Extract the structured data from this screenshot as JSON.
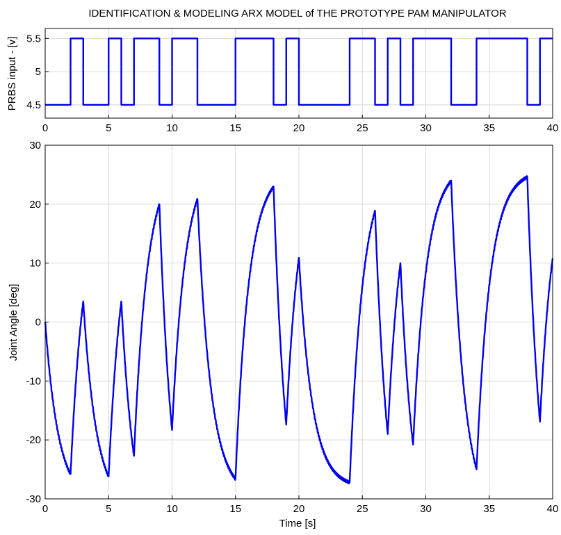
{
  "chart_data": [
    {
      "type": "line",
      "title": "IDENTIFICATION & MODELING ARX MODEL of THE PROTOTYPE PAM MANIPULATOR",
      "xlabel": "",
      "ylabel": "PRBS input - [v]",
      "xlim": [
        0,
        40
      ],
      "ylim": [
        4.3,
        5.65
      ],
      "xticks": [
        "0",
        "5",
        "10",
        "15",
        "20",
        "25",
        "30",
        "35",
        "40"
      ],
      "yticks": [
        "4.5",
        "5",
        "5.5"
      ],
      "grid": true,
      "series": [
        {
          "color": "#0000ee",
          "style": "step",
          "x": [
            0,
            2,
            2,
            3,
            3,
            5,
            5,
            6,
            6,
            7,
            7,
            9,
            9,
            10,
            10,
            12,
            12,
            15,
            15,
            18,
            18,
            19,
            19,
            20,
            20,
            24,
            24,
            26,
            26,
            27,
            27,
            28,
            28,
            29,
            29,
            32,
            32,
            34,
            34,
            38,
            38,
            39,
            39,
            40
          ],
          "y": [
            4.5,
            4.5,
            5.5,
            5.5,
            4.5,
            4.5,
            5.5,
            5.5,
            4.5,
            4.5,
            5.5,
            5.5,
            4.5,
            4.5,
            5.5,
            5.5,
            4.5,
            4.5,
            5.5,
            5.5,
            4.5,
            4.5,
            5.5,
            5.5,
            4.5,
            4.5,
            5.5,
            5.5,
            4.5,
            4.5,
            5.5,
            5.5,
            4.5,
            4.5,
            5.5,
            5.5,
            4.5,
            4.5,
            5.5,
            5.5,
            4.5,
            4.5,
            5.5,
            5.5
          ]
        }
      ]
    },
    {
      "type": "line",
      "title": "",
      "xlabel": "Time  [s]",
      "ylabel": "Joint Angle  [deg]",
      "xlim": [
        0,
        40
      ],
      "ylim": [
        -30,
        30
      ],
      "xticks": [
        "0",
        "5",
        "10",
        "15",
        "20",
        "25",
        "30",
        "35",
        "40"
      ],
      "yticks": [
        "-30",
        "-20",
        "-10",
        "0",
        "10",
        "20",
        "30"
      ],
      "grid": true,
      "series": [
        {
          "color": "#0000ee",
          "model": "first-order exponential response to PRBS steps",
          "x": [
            0,
            2,
            3,
            5,
            6,
            7,
            9,
            10,
            12,
            15,
            18,
            19,
            20,
            24,
            26,
            27,
            28,
            29,
            32,
            34,
            38,
            39,
            40
          ],
          "y": [
            0,
            -25.8,
            3.5,
            -26.2,
            3.5,
            -22.7,
            20.0,
            -18.3,
            20.9,
            -26.6,
            23.0,
            -17.4,
            10.9,
            -27.2,
            18.9,
            -19.0,
            10.0,
            -20.8,
            24.0,
            -25.0,
            24.6,
            -16.9,
            10.8
          ]
        }
      ]
    }
  ]
}
